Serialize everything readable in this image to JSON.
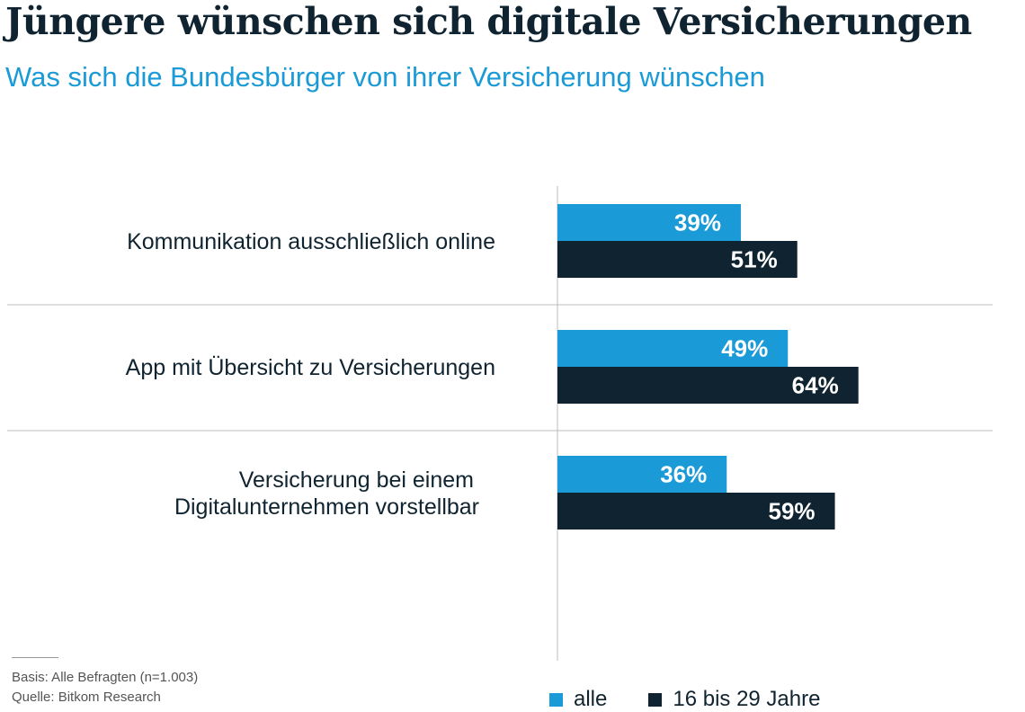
{
  "title": "Jüngere wünschen sich digitale Versicherungen",
  "subtitle": "Was sich die Bundesbürger von ihrer Versicherung wünschen",
  "footnotes": {
    "basis": "Basis: Alle Befragten (n=1.003)",
    "source": "Quelle: Bitkom Research"
  },
  "colors": {
    "alle": "#1a9ad6",
    "young": "#0f2430",
    "axis": "#bdbdbd"
  },
  "chart_data": {
    "type": "bar",
    "orientation": "horizontal",
    "categories": [
      [
        "Kommunikation ausschließlich online"
      ],
      [
        "App mit Übersicht zu Versicherungen"
      ],
      [
        "Versicherung bei einem",
        "Digitalunternehmen vorstellbar"
      ]
    ],
    "series": [
      {
        "name": "alle",
        "values": [
          39,
          49,
          36
        ],
        "labels": [
          "39%",
          "49%",
          "36%"
        ]
      },
      {
        "name": "16 bis 29 Jahre",
        "values": [
          51,
          64,
          59
        ],
        "labels": [
          "51%",
          "64%",
          "59%"
        ]
      }
    ],
    "unit": "%",
    "xlim": [
      0,
      100
    ],
    "grid": false,
    "legend_position": "bottom-right"
  }
}
